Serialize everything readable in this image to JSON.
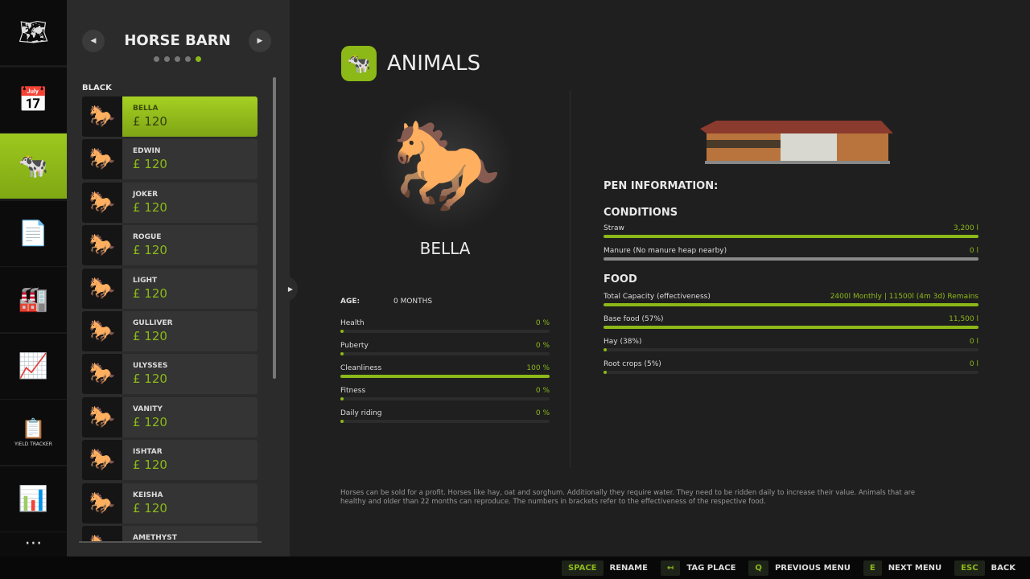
{
  "sidebar": {
    "items": [
      {
        "icon": "map-icon",
        "glyph": "🗺"
      },
      {
        "icon": "calendar-icon",
        "glyph": "📅"
      },
      {
        "icon": "cow-icon",
        "glyph": "🐄",
        "active": true
      },
      {
        "icon": "contracts-icon",
        "glyph": "📄"
      },
      {
        "icon": "production-icon",
        "glyph": "🏭"
      },
      {
        "icon": "finances-icon",
        "glyph": "📈"
      },
      {
        "icon": "yield-tracker-icon",
        "glyph": "📋",
        "label": "YIELD TRACKER"
      },
      {
        "icon": "statistics-icon",
        "glyph": "📊"
      },
      {
        "icon": "more-icon",
        "glyph": "⋯"
      }
    ]
  },
  "barn": {
    "title": "HORSE BARN",
    "pages": 5,
    "current_page": 5,
    "group": "BLACK"
  },
  "animals": [
    {
      "name": "BELLA",
      "price": "£ 120"
    },
    {
      "name": "EDWIN",
      "price": "£ 120"
    },
    {
      "name": "JOKER",
      "price": "£ 120"
    },
    {
      "name": "ROGUE",
      "price": "£ 120"
    },
    {
      "name": "LIGHT",
      "price": "£ 120"
    },
    {
      "name": "GULLIVER",
      "price": "£ 120"
    },
    {
      "name": "ULYSSES",
      "price": "£ 120"
    },
    {
      "name": "VANITY",
      "price": "£ 120"
    },
    {
      "name": "ISHTAR",
      "price": "£ 120"
    },
    {
      "name": "KEISHA",
      "price": "£ 120"
    },
    {
      "name": "AMETHYST",
      "price": ""
    }
  ],
  "header": {
    "title": "ANIMALS"
  },
  "animal": {
    "name": "BELLA",
    "age_label": "AGE:",
    "age": "0 MONTHS",
    "stats": [
      {
        "label": "Health",
        "value": "0 %",
        "pct": 0
      },
      {
        "label": "Puberty",
        "value": "0 %",
        "pct": 0
      },
      {
        "label": "Cleanliness",
        "value": "100 %",
        "pct": 100
      },
      {
        "label": "Fitness",
        "value": "0 %",
        "pct": 0
      },
      {
        "label": "Daily riding",
        "value": "0 %",
        "pct": 0
      }
    ]
  },
  "pen": {
    "title": "PEN INFORMATION:",
    "conditions_title": "CONDITIONS",
    "conditions": [
      {
        "label": "Straw",
        "value": "3,200 l",
        "pct": 100,
        "color": "#8cb818"
      },
      {
        "label": "Manure (No manure heap nearby)",
        "value": "0 l",
        "pct": 100,
        "color": "#8a8a8a"
      }
    ],
    "food_title": "FOOD",
    "food": [
      {
        "label": "Total Capacity (effectiveness)",
        "value": "2400l Monthly | 11500l (4m 3d) Remains",
        "pct": 100
      },
      {
        "label": "Base food (57%)",
        "value": "11,500 l",
        "pct": 100
      },
      {
        "label": "Hay (38%)",
        "value": "0 l",
        "pct": 0
      },
      {
        "label": "Root crops (5%)",
        "value": "0 l",
        "pct": 0
      }
    ]
  },
  "description": "Horses can be sold for a profit. Horses like hay, oat and sorghum. Additionally they require water. They need to be ridden daily to increase their value. Animals that are healthy and older than 22 months can reproduce. The numbers in brackets refer to the effectiveness of the respective food.",
  "controls": [
    {
      "key": "SPACE",
      "label": "RENAME"
    },
    {
      "key": "↤",
      "label": "TAG PLACE"
    },
    {
      "key": "Q",
      "label": "PREVIOUS MENU"
    },
    {
      "key": "E",
      "label": "NEXT MENU"
    },
    {
      "key": "ESC",
      "label": "BACK"
    }
  ],
  "colors": {
    "accent": "#8cb818"
  }
}
